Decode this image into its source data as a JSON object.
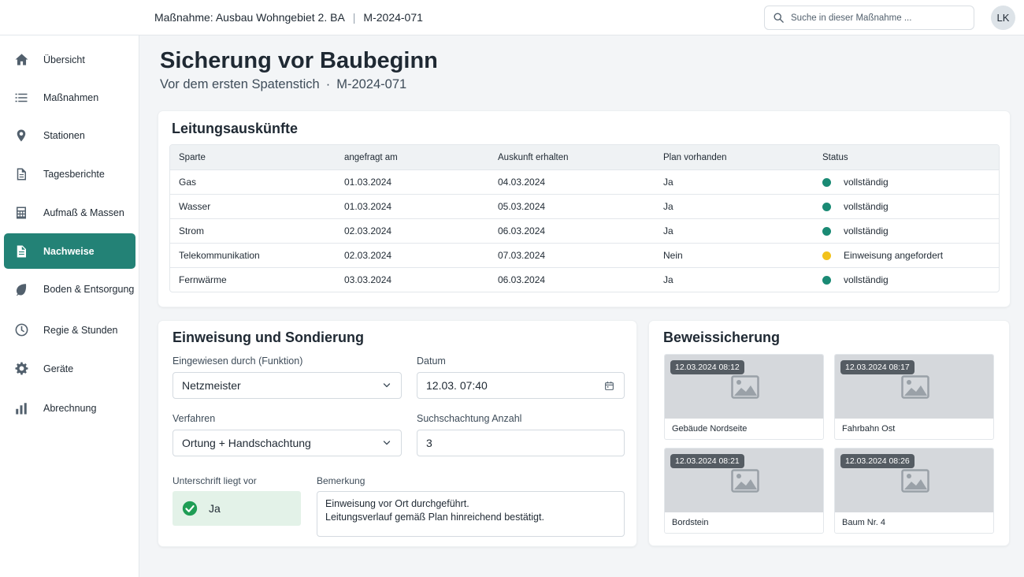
{
  "header": {
    "measure_label": "Maßnahme: Ausbau Wohngebiet 2. BA",
    "separator": "|",
    "measure_id": "M-2024-071",
    "search_placeholder": "Suche in dieser Maßnahme ...",
    "avatar_initials": "LK"
  },
  "sidebar": {
    "items": [
      {
        "label": "Übersicht",
        "icon": "home-icon"
      },
      {
        "label": "Maßnahmen",
        "icon": "list-icon"
      },
      {
        "label": "Stationen",
        "icon": "map-pin-icon"
      },
      {
        "label": "Tagesberichte",
        "icon": "document-icon"
      },
      {
        "label": "Aufmaß & Massen",
        "icon": "calculator-icon"
      },
      {
        "label": "Nachweise",
        "icon": "file-check-icon",
        "active": true
      },
      {
        "label": "Boden & Entsorgung",
        "icon": "leaf-icon"
      },
      {
        "label": "Regie & Stunden",
        "icon": "clock-icon"
      },
      {
        "label": "Geräte",
        "icon": "gear-icon"
      },
      {
        "label": "Abrechnung",
        "icon": "bar-chart-icon"
      }
    ]
  },
  "page": {
    "title": "Sicherung vor Baubeginn",
    "subtitle": "Vor dem ersten Spatenstich",
    "subtitle_dot": "·",
    "subtitle_id": "M-2024-071"
  },
  "utilities": {
    "title": "Leitungsauskünfte",
    "columns": [
      "Sparte",
      "angefragt am",
      "Auskunft erhalten",
      "Plan vorhanden",
      "Status"
    ],
    "rows": [
      {
        "sparte": "Gas",
        "angefragt": "01.03.2024",
        "erhalten": "04.03.2024",
        "plan": "Ja",
        "status": "vollständig",
        "status_color": "#1a8a74"
      },
      {
        "sparte": "Wasser",
        "angefragt": "01.03.2024",
        "erhalten": "05.03.2024",
        "plan": "Ja",
        "status": "vollständig",
        "status_color": "#1a8a74"
      },
      {
        "sparte": "Strom",
        "angefragt": "02.03.2024",
        "erhalten": "06.03.2024",
        "plan": "Ja",
        "status": "vollständig",
        "status_color": "#1a8a74"
      },
      {
        "sparte": "Telekommunikation",
        "angefragt": "02.03.2024",
        "erhalten": "07.03.2024",
        "plan": "Nein",
        "status": "Einweisung angefordert",
        "status_color": "#f2c21b"
      },
      {
        "sparte": "Fernwärme",
        "angefragt": "03.03.2024",
        "erhalten": "06.03.2024",
        "plan": "Ja",
        "status": "vollständig",
        "status_color": "#1a8a74"
      }
    ]
  },
  "briefing": {
    "title": "Einweisung und Sondierung",
    "instructed_label": "Eingewiesen durch (Funktion)",
    "instructed_value": "Netzmeister",
    "date_label": "Datum",
    "date_value": "12.03. 07:40",
    "method_label": "Verfahren",
    "method_value": "Ortung + Handschachtung",
    "count_label": "Suchschachtung Anzahl",
    "count_value": "3",
    "signature_label": "Unterschrift liegt vor",
    "signature_value": "Ja",
    "remark_label": "Bemerkung",
    "remark_line1": "Einweisung vor Ort durchgeführt.",
    "remark_line2": "Leitungsverlauf gemäß Plan hinreichend bestätigt."
  },
  "evidence": {
    "title": "Beweissicherung",
    "photos": [
      {
        "timestamp": "12.03.2024 08:12",
        "caption": "Gebäude Nordseite"
      },
      {
        "timestamp": "12.03.2024 08:17",
        "caption": "Fahrbahn Ost"
      },
      {
        "timestamp": "12.03.2024 08:21",
        "caption": "Bordstein"
      },
      {
        "timestamp": "12.03.2024 08:26",
        "caption": "Baum Nr. 4"
      }
    ]
  },
  "colors": {
    "accent": "#238276",
    "status_ok": "#1a8a74",
    "status_warn": "#f2c21b",
    "check_bg": "#e3f2e8"
  }
}
